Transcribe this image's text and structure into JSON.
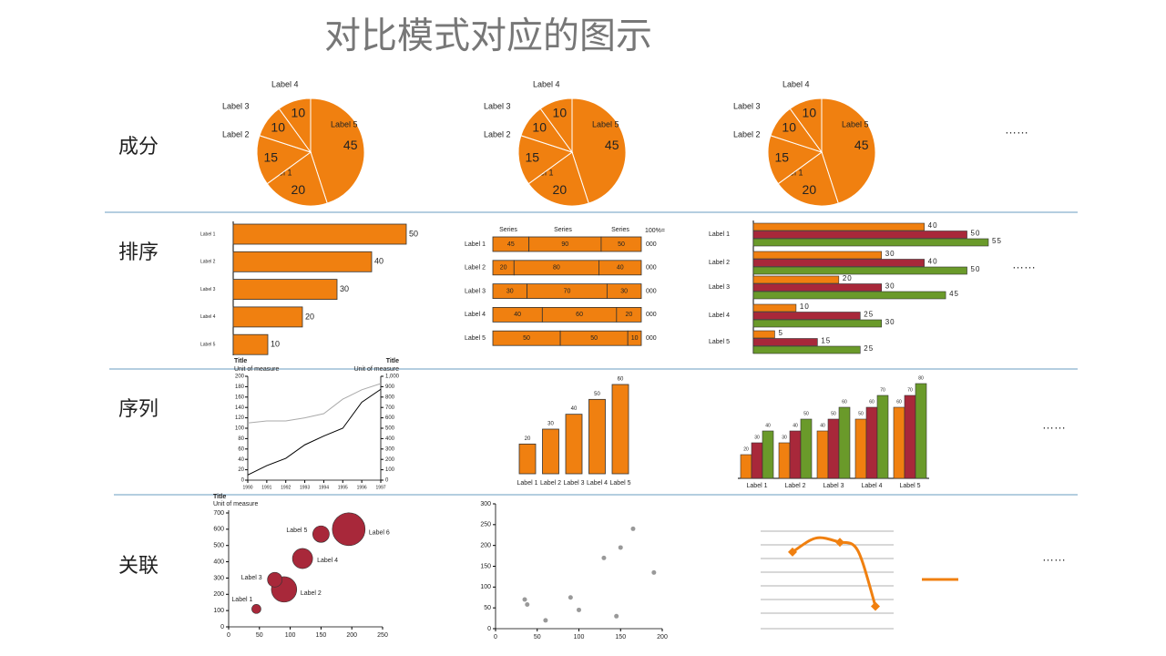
{
  "title": "对比模式对应的图示",
  "rows": [
    "成分",
    "排序",
    "序列",
    "关联"
  ],
  "ellipsis": "……",
  "chart_data": [
    {
      "type": "pie",
      "categories": [
        "Label 5",
        "Label 1",
        "Label 2",
        "Label 3",
        "Label 4"
      ],
      "values": [
        45,
        20,
        15,
        10,
        10
      ],
      "color": "#f08010"
    },
    {
      "type": "pie",
      "categories": [
        "Label 5",
        "Label 1",
        "Label 2",
        "Label 3",
        "Label 4"
      ],
      "values": [
        45,
        20,
        15,
        10,
        10
      ],
      "color": "#f08010"
    },
    {
      "type": "pie",
      "categories": [
        "Label 5",
        "Label 1",
        "Label 2",
        "Label 3",
        "Label 4"
      ],
      "values": [
        45,
        20,
        15,
        10,
        10
      ],
      "color": "#f08010"
    },
    {
      "type": "hbar",
      "categories": [
        "Label 1",
        "Label 2",
        "Label 3",
        "Label 4",
        "Label 5"
      ],
      "values": [
        50,
        40,
        30,
        20,
        10
      ],
      "xlim": [
        0,
        50
      ],
      "color": "#f08010"
    },
    {
      "type": "stack100",
      "categories": [
        "Label 1",
        "Label 2",
        "Label 3",
        "Label 4",
        "Label 5"
      ],
      "series": [
        {
          "name": "Series",
          "values": [
            45,
            20,
            30,
            40,
            50
          ]
        },
        {
          "name": "Series",
          "values": [
            90,
            80,
            70,
            60,
            50
          ]
        },
        {
          "name": "Series",
          "values": [
            50,
            40,
            30,
            20,
            10
          ]
        }
      ],
      "total_label": "100%=",
      "totals": [
        "000",
        "000",
        "000",
        "000",
        "000"
      ],
      "color": "#f08010"
    },
    {
      "type": "hgroup",
      "categories": [
        "Label 1",
        "Label 2",
        "Label 3",
        "Label 4",
        "Label 5"
      ],
      "xlim": [
        0,
        55
      ],
      "series": [
        {
          "color": "#f08010",
          "values": [
            40,
            30,
            20,
            10,
            5
          ]
        },
        {
          "color": "#a8283a",
          "values": [
            50,
            40,
            30,
            25,
            15
          ]
        },
        {
          "color": "#6a9a2a",
          "values": [
            55,
            50,
            45,
            30,
            25
          ]
        }
      ]
    },
    {
      "type": "line",
      "y_title": "Title",
      "y_unit": "Unit of measure",
      "y2_title": "Title",
      "y2_unit": "Unit of measure",
      "x": [
        1990,
        1991,
        1992,
        1993,
        1994,
        1995,
        1996,
        1997
      ],
      "xlim": [
        1990,
        1997
      ],
      "xticks": [
        1990,
        1991,
        1992,
        1993,
        1994,
        1995,
        1996,
        1997
      ],
      "ylim": [
        0,
        200
      ],
      "yticks": [
        0,
        20,
        40,
        60,
        80,
        100,
        120,
        140,
        160,
        180,
        200
      ],
      "y2lim": [
        0,
        1000
      ],
      "y2ticks": [
        0,
        100,
        200,
        300,
        400,
        500,
        600,
        700,
        800,
        900,
        {
          "value": 1000,
          "label": "1,000"
        }
      ],
      "series": [
        {
          "color": "#000000",
          "values": [
            10,
            28,
            42,
            68,
            85,
            100,
            150,
            175
          ]
        },
        {
          "color": "#aaaaaa",
          "axis": "y2",
          "values": [
            550,
            570,
            570,
            600,
            640,
            780,
            870,
            930
          ]
        }
      ]
    },
    {
      "type": "vbar",
      "categories": [
        "Label 1",
        "Label 2",
        "Label 3",
        "Label 4",
        "Label 5"
      ],
      "values": [
        20,
        30,
        40,
        50,
        60
      ],
      "ylim": [
        0,
        60
      ],
      "color": "#f08010"
    },
    {
      "type": "vgroup",
      "categories": [
        "Label 1",
        "Label 2",
        "Label 3",
        "Label 4",
        "Label 5"
      ],
      "ylim": [
        0,
        80
      ],
      "series": [
        {
          "color": "#f08010",
          "values": [
            20,
            30,
            40,
            50,
            60
          ]
        },
        {
          "color": "#a8283a",
          "values": [
            30,
            40,
            50,
            60,
            70
          ]
        },
        {
          "color": "#6a9a2a",
          "values": [
            40,
            50,
            60,
            70,
            80
          ]
        }
      ]
    },
    {
      "type": "bubble",
      "title": "Title",
      "subtitle": "Unit of measure",
      "labels": [
        "Label 1",
        "Label 2",
        "Label 3",
        "Label 4",
        "Label 5",
        "Label 6"
      ],
      "x": [
        45,
        90,
        75,
        120,
        150,
        195
      ],
      "values": [
        110,
        230,
        290,
        420,
        570,
        600
      ],
      "sizes": [
        0.7,
        5.4,
        1.8,
        3.4,
        2.3,
        9
      ],
      "xlim": [
        0,
        250
      ],
      "xticks": [
        0,
        50,
        100,
        150,
        200,
        250
      ],
      "ylim": [
        0,
        700
      ],
      "yticks": [
        0,
        100,
        200,
        300,
        400,
        500,
        600,
        700
      ],
      "color": "#a8283a"
    },
    {
      "type": "scatter",
      "x": [
        35,
        38,
        60,
        90,
        100,
        130,
        145,
        150,
        165,
        190
      ],
      "values": [
        70,
        58,
        20,
        75,
        45,
        170,
        30,
        195,
        240,
        135
      ],
      "xlim": [
        0,
        200
      ],
      "xticks": [
        0,
        50,
        100,
        150,
        200
      ],
      "ylim": [
        0,
        300
      ],
      "yticks": [
        0,
        50,
        100,
        150,
        200,
        250,
        300
      ],
      "color": "#999999"
    },
    {
      "type": "curve",
      "values": [
        5.5,
        6.2,
        1.6
      ],
      "ylim": [
        0,
        7
      ],
      "color": "#f08010"
    }
  ]
}
